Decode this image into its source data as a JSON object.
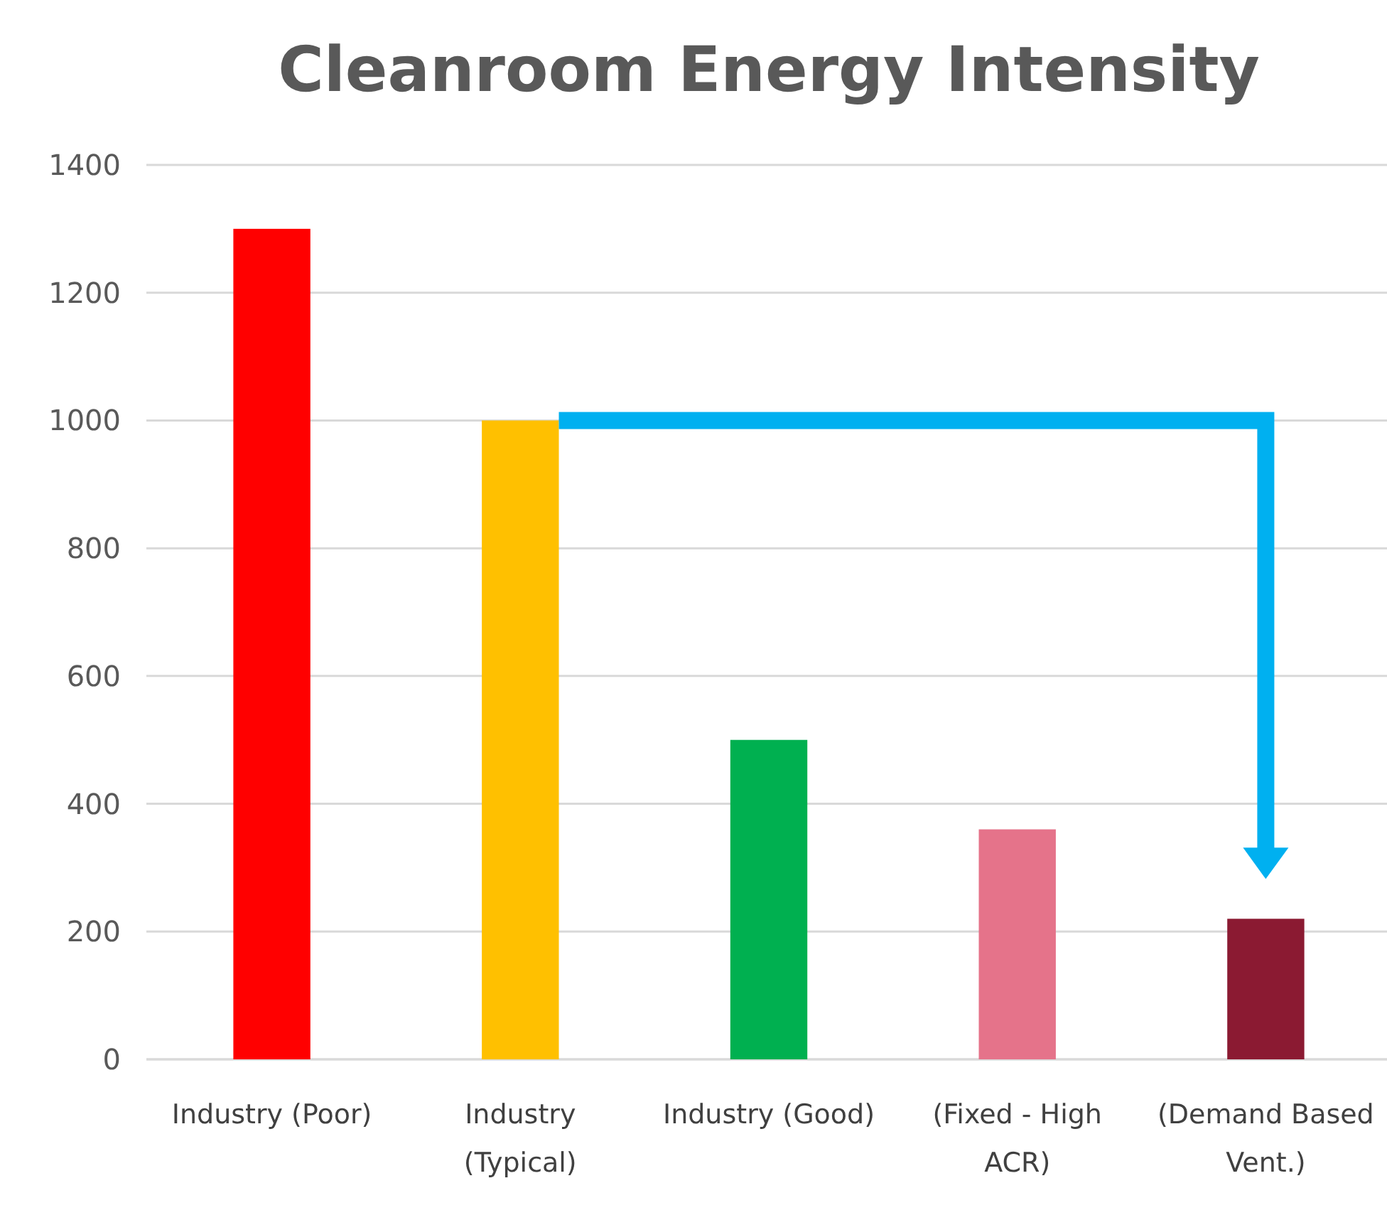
{
  "chart_data": {
    "type": "bar",
    "title": "Cleanroom Energy Intensity",
    "categories": [
      "Industry (Poor)",
      "Industry (Typical)",
      "Industry (Good)",
      "(Fixed - High ACR)",
      "(Demand Based Vent.)"
    ],
    "values": [
      1300,
      1000,
      500,
      360,
      220
    ],
    "colors": [
      "#ff0000",
      "#ffc000",
      "#00b050",
      "#e5738a",
      "#8b1a32"
    ],
    "ylim": [
      0,
      1400
    ],
    "yticks": [
      0,
      200,
      400,
      600,
      800,
      1000,
      1200,
      1400
    ],
    "grid": "y"
  }
}
